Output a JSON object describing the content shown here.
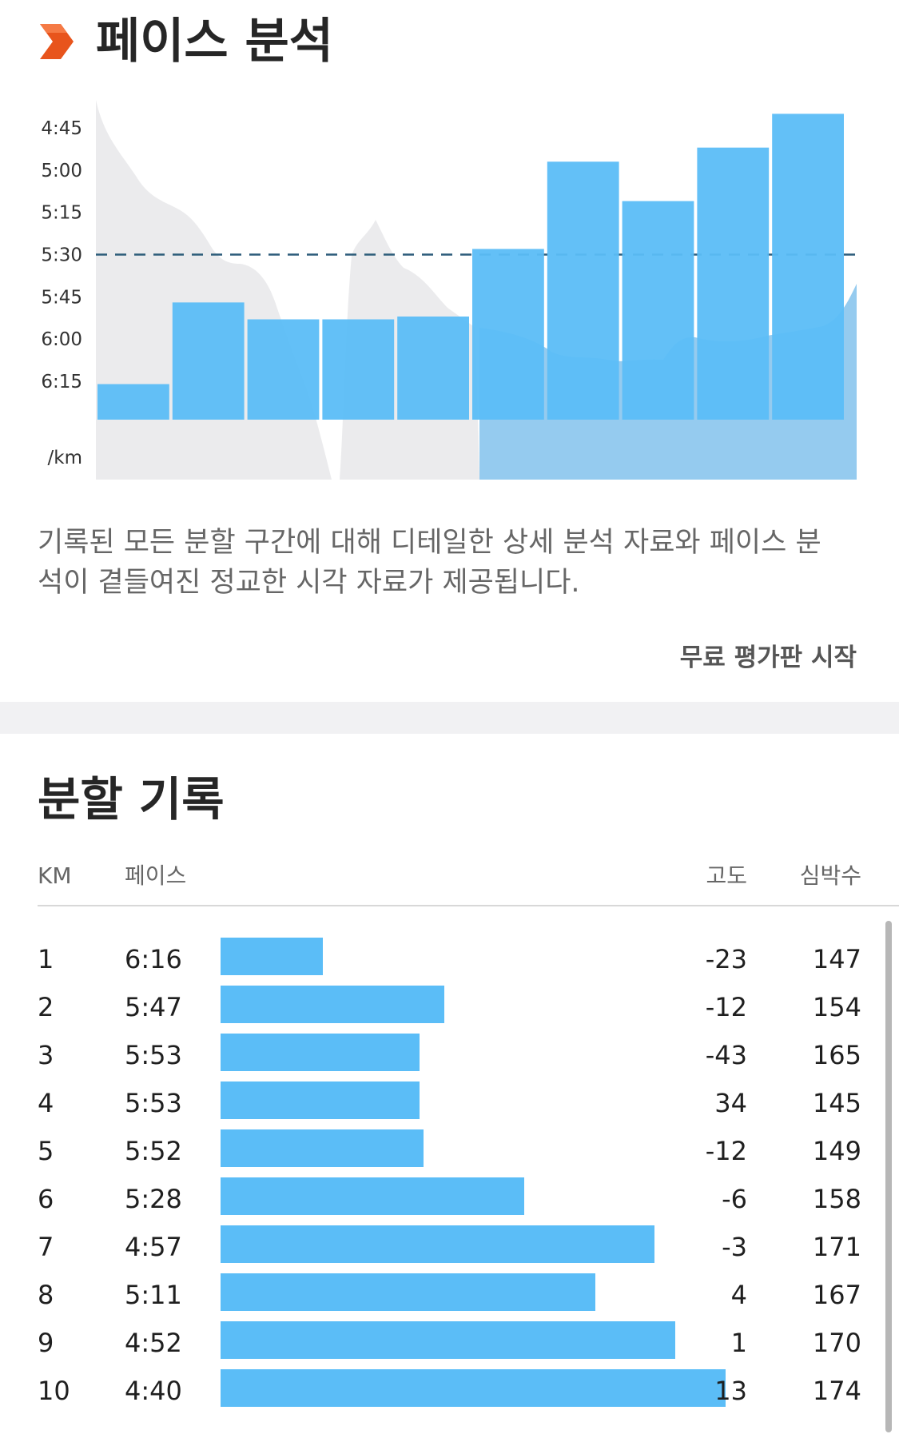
{
  "pace_analysis": {
    "title": "페이스 분석",
    "description": "기록된 모든 분할 구간에 대해 디테일한 상세 분석 자료와 페이스 분석이 곁들여진 정교한 시각 자료가 제공됩니다.",
    "trial_button": "무료 평가판 시작",
    "brand_color": "#e8541c"
  },
  "chart_data": {
    "type": "bar",
    "categories": [
      "1",
      "2",
      "3",
      "4",
      "5",
      "6",
      "7",
      "8",
      "9",
      "10"
    ],
    "values": [
      "6:16",
      "5:47",
      "5:53",
      "5:53",
      "5:52",
      "5:28",
      "4:57",
      "5:11",
      "4:52",
      "4:40"
    ],
    "y_ticks": [
      "4:45",
      "5:00",
      "5:15",
      "5:30",
      "5:45",
      "6:00",
      "6:15"
    ],
    "y_unit": "/km",
    "reference_line": "5:30",
    "bar_color": "#5bbdf7",
    "background_area": "elevation profile"
  },
  "splits": {
    "title": "분할 기록",
    "columns": {
      "km": "KM",
      "pace": "페이스",
      "elevation": "고도",
      "heart_rate": "심박수"
    },
    "rows": [
      {
        "km": "1",
        "pace": "6:16",
        "elevation": "-23",
        "heart_rate": "147"
      },
      {
        "km": "2",
        "pace": "5:47",
        "elevation": "-12",
        "heart_rate": "154"
      },
      {
        "km": "3",
        "pace": "5:53",
        "elevation": "-43",
        "heart_rate": "165"
      },
      {
        "km": "4",
        "pace": "5:53",
        "elevation": "34",
        "heart_rate": "145"
      },
      {
        "km": "5",
        "pace": "5:52",
        "elevation": "-12",
        "heart_rate": "149"
      },
      {
        "km": "6",
        "pace": "5:28",
        "elevation": "-6",
        "heart_rate": "158"
      },
      {
        "km": "7",
        "pace": "4:57",
        "elevation": "-3",
        "heart_rate": "171"
      },
      {
        "km": "8",
        "pace": "5:11",
        "elevation": "4",
        "heart_rate": "167"
      },
      {
        "km": "9",
        "pace": "4:52",
        "elevation": "1",
        "heart_rate": "170"
      },
      {
        "km": "10",
        "pace": "4:40",
        "elevation": "13",
        "heart_rate": "174"
      }
    ]
  }
}
